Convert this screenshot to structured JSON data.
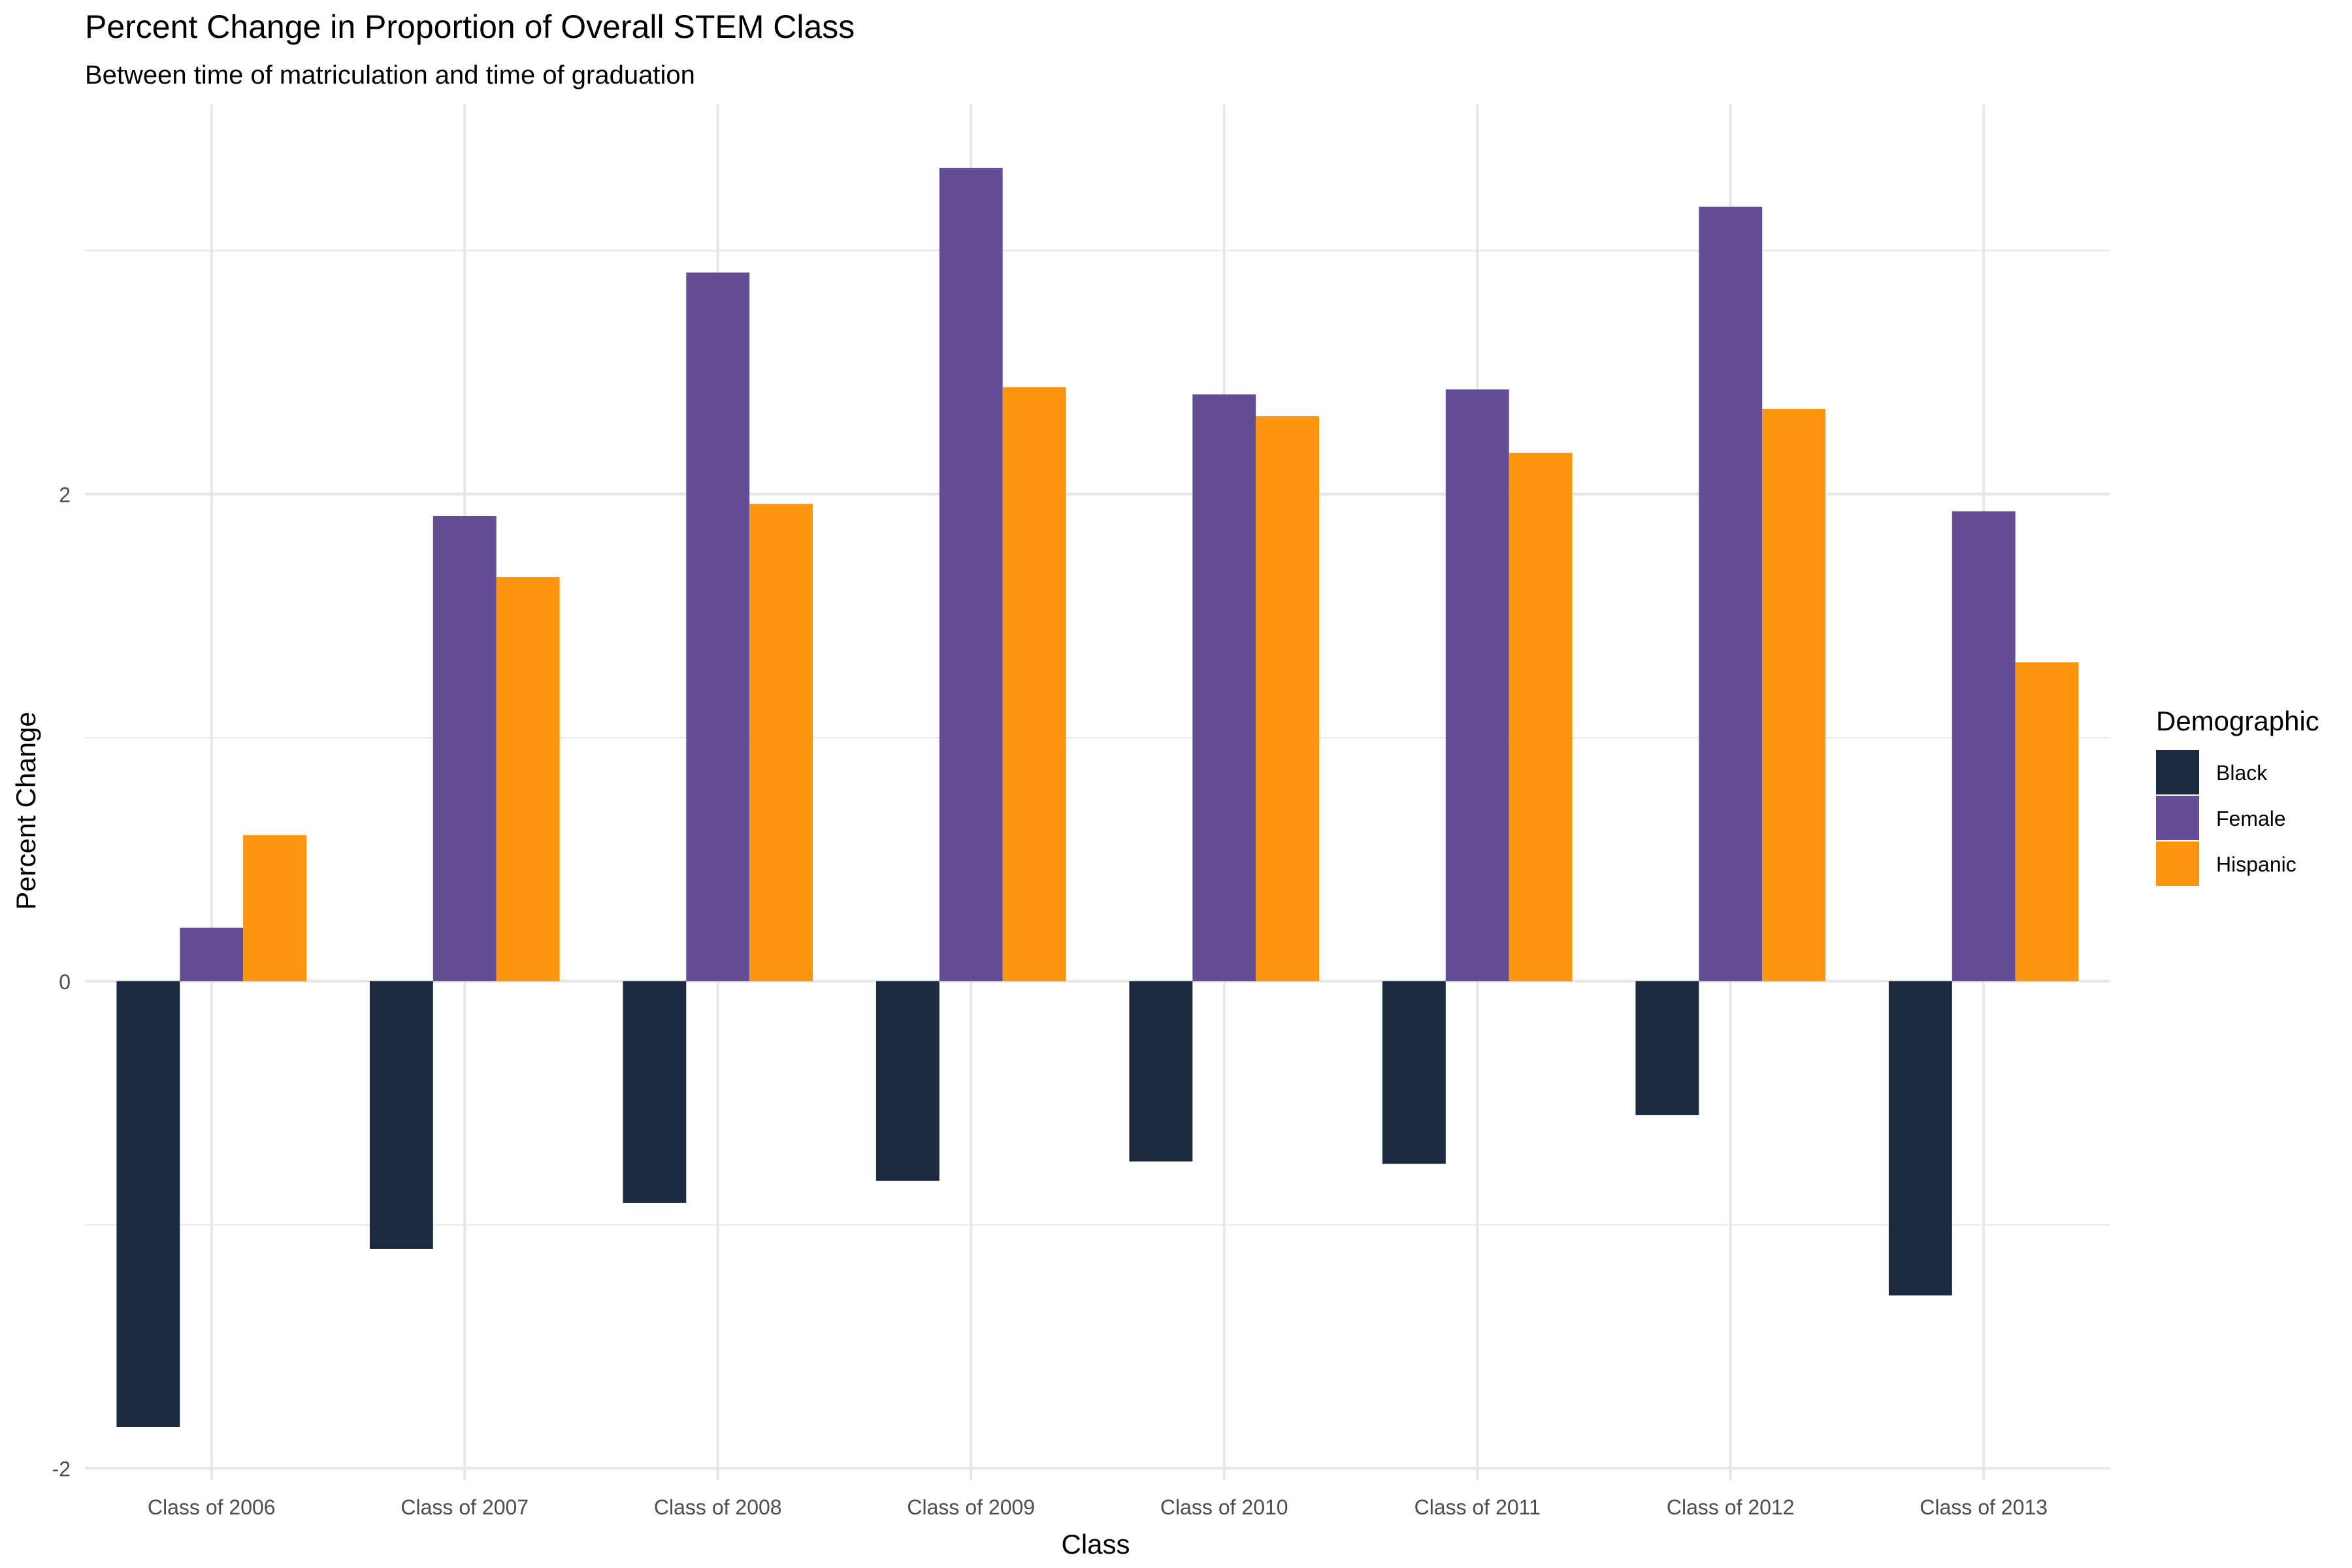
{
  "chart_data": {
    "type": "bar",
    "title": "Percent Change in Proportion of Overall STEM Class",
    "subtitle": "Between time of matriculation and time of graduation",
    "xlabel": "Class",
    "ylabel": "Percent Change",
    "categories": [
      "Class of 2006",
      "Class of 2007",
      "Class of 2008",
      "Class of 2009",
      "Class of 2010",
      "Class of 2011",
      "Class of 2012",
      "Class of 2013"
    ],
    "series": [
      {
        "name": "Black",
        "color": "#1b2a3f",
        "values": [
          -1.83,
          -1.1,
          -0.91,
          -0.82,
          -0.74,
          -0.75,
          -0.55,
          -1.29
        ]
      },
      {
        "name": "Female",
        "color": "#644d94",
        "values": [
          0.22,
          1.91,
          2.91,
          3.34,
          2.41,
          2.43,
          3.18,
          1.93
        ]
      },
      {
        "name": "Hispanic",
        "color": "#fc950d",
        "values": [
          0.6,
          1.66,
          1.96,
          2.44,
          2.32,
          2.17,
          2.35,
          1.31
        ]
      }
    ],
    "ylim": [
      -2.05,
      3.6
    ],
    "y_ticks": [
      -2,
      0,
      2
    ],
    "grid": true,
    "legend": {
      "title": "Demographic",
      "position": "right"
    }
  }
}
